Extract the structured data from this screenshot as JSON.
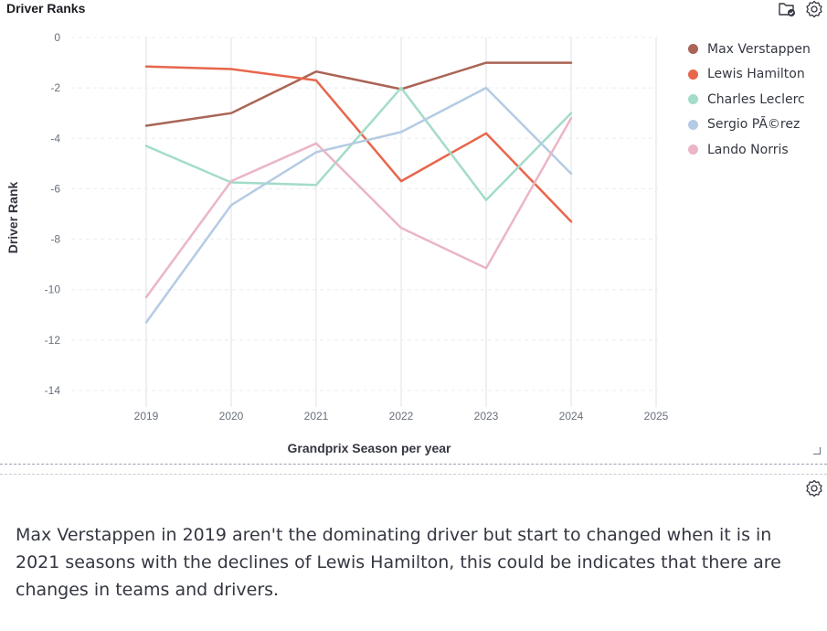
{
  "panel": {
    "title": "Driver Ranks",
    "text": "Max Verstappen in 2019 aren't the dominating driver but start to changed when it is in 2021 seasons with the declines of Lewis Hamilton, this could be indicates that there are changes in teams and drivers."
  },
  "icons": {
    "folder": "folder-check-icon",
    "settings": "gear-icon",
    "resize": "resize-handle-icon"
  },
  "chart_data": {
    "type": "line",
    "title": "Driver Ranks",
    "xlabel": "Grandprix Season per year",
    "ylabel": "Driver Rank",
    "xlim": [
      2019,
      2025
    ],
    "ylim": [
      -14,
      0
    ],
    "x_ticks": [
      "2019",
      "2020",
      "2021",
      "2022",
      "2023",
      "2024",
      "2025"
    ],
    "y_ticks": [
      "0",
      "-2",
      "-4",
      "-6",
      "-8",
      "-10",
      "-12",
      "-14"
    ],
    "grid": true,
    "legend_position": "right",
    "x": [
      2019,
      2020,
      2021,
      2022,
      2023,
      2024
    ],
    "series": [
      {
        "name": "Max Verstappen",
        "color": "#aa6556",
        "values": [
          -3.5,
          -3.0,
          -1.35,
          -2.05,
          -1.0,
          -1.0
        ]
      },
      {
        "name": "Lewis Hamilton",
        "color": "#e7664c",
        "values": [
          -1.15,
          -1.25,
          -1.7,
          -5.7,
          -3.8,
          -7.3
        ]
      },
      {
        "name": "Charles Leclerc",
        "color": "#a3dcc8",
        "values": [
          -4.3,
          -5.75,
          -5.85,
          -2.0,
          -6.45,
          -3.0
        ]
      },
      {
        "name": "Sergio PÃ©rez",
        "color": "#b4cbe3",
        "values": [
          -11.3,
          -6.65,
          -4.55,
          -3.75,
          -2.0,
          -5.4
        ]
      },
      {
        "name": "Lando Norris",
        "color": "#eab6c6",
        "values": [
          -10.3,
          -5.7,
          -4.2,
          -7.55,
          -9.15,
          -3.2
        ]
      }
    ]
  }
}
